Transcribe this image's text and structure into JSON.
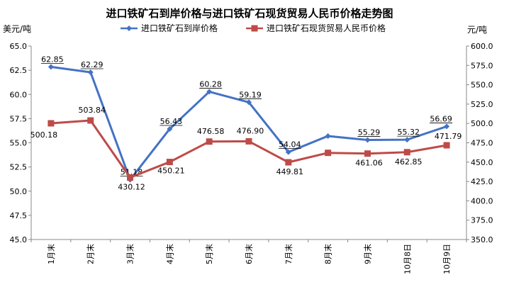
{
  "chart_data": {
    "type": "line",
    "title": "进口铁矿石到岸价格与进口铁矿石现货贸易人民币价格走势图",
    "y_left_unit": "美元/吨",
    "y_right_unit": "元/吨",
    "categories": [
      "1月末",
      "2月末",
      "3月末",
      "4月末",
      "5月末",
      "6月末",
      "7月末",
      "8月末",
      "9月末",
      "10月8日",
      "10月9日"
    ],
    "y_left": {
      "min": 45,
      "max": 65,
      "step": 2.5,
      "ticks": [
        "45.0",
        "47.5",
        "50.0",
        "52.5",
        "55.0",
        "57.5",
        "60.0",
        "62.5",
        "65.0"
      ]
    },
    "y_right": {
      "min": 350,
      "max": 600,
      "step": 25,
      "ticks": [
        "350.0",
        "375.0",
        "400.0",
        "425.0",
        "450.0",
        "475.0",
        "500.0",
        "525.0",
        "550.0",
        "575.0",
        "600.0"
      ]
    },
    "grid": false,
    "legend_position": "top",
    "series": [
      {
        "name": "进口铁矿石到岸价格",
        "axis": "left",
        "color": "#4472C4",
        "marker": "diamond",
        "values": [
          62.85,
          62.29,
          51.18,
          56.43,
          60.28,
          59.19,
          54.04,
          55.7,
          55.29,
          55.32,
          56.69
        ],
        "labels": [
          "62.85",
          "62.29",
          "51.18",
          "56.43",
          "60.28",
          "59.19",
          "54.04",
          "",
          "55.29",
          "55.32",
          "56.69"
        ]
      },
      {
        "name": "进口铁矿石现货贸易人民币价格",
        "axis": "right",
        "color": "#BE4B48",
        "marker": "square",
        "values": [
          500.18,
          503.84,
          430.12,
          450.21,
          476.58,
          476.9,
          449.81,
          462.0,
          461.06,
          462.85,
          471.79
        ],
        "labels": [
          "500.18",
          "503.84",
          "430.12",
          "450.21",
          "476.58",
          "476.90",
          "449.81",
          "",
          "461.06",
          "462.85",
          "471.79"
        ]
      }
    ]
  }
}
